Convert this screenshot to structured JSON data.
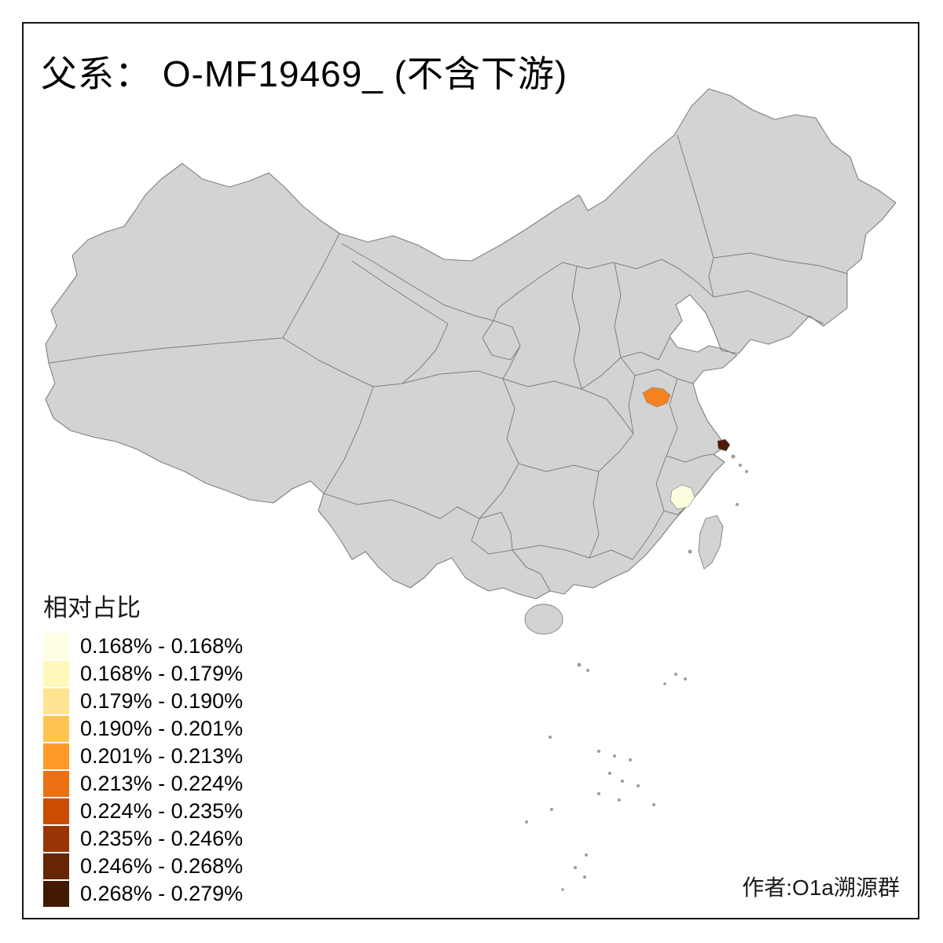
{
  "title": "父系： O-MF19469_ (不含下游)",
  "legend": {
    "title": "相对占比",
    "entries": [
      {
        "label": "0.168% - 0.168%",
        "color": "#FFFFE5"
      },
      {
        "label": "0.168% - 0.179%",
        "color": "#FFF7BC"
      },
      {
        "label": "0.179% - 0.190%",
        "color": "#FEE391"
      },
      {
        "label": "0.190% - 0.201%",
        "color": "#FEC44F"
      },
      {
        "label": "0.201% - 0.213%",
        "color": "#FE9929"
      },
      {
        "label": "0.213% - 0.224%",
        "color": "#EC7014"
      },
      {
        "label": "0.224% - 0.235%",
        "color": "#CC4C02"
      },
      {
        "label": "0.235% - 0.246%",
        "color": "#993404"
      },
      {
        "label": "0.246% - 0.268%",
        "color": "#662506"
      },
      {
        "label": "0.268% - 0.279%",
        "color": "#421A04"
      }
    ]
  },
  "credit": "作者:O1a溯源群",
  "map": {
    "land_fill": "#D3D3D3",
    "border_color": "#7F7F7F",
    "background": "#FFFFFF",
    "frame_color": "#161616",
    "highlighted_regions": [
      {
        "name": "north-anhui-prefecture",
        "color": "#F5821E"
      },
      {
        "name": "shanghai-area-prefecture",
        "color": "#4A1B05"
      },
      {
        "name": "south-zhejiang-prefecture",
        "color": "#FDFCDF"
      }
    ]
  }
}
